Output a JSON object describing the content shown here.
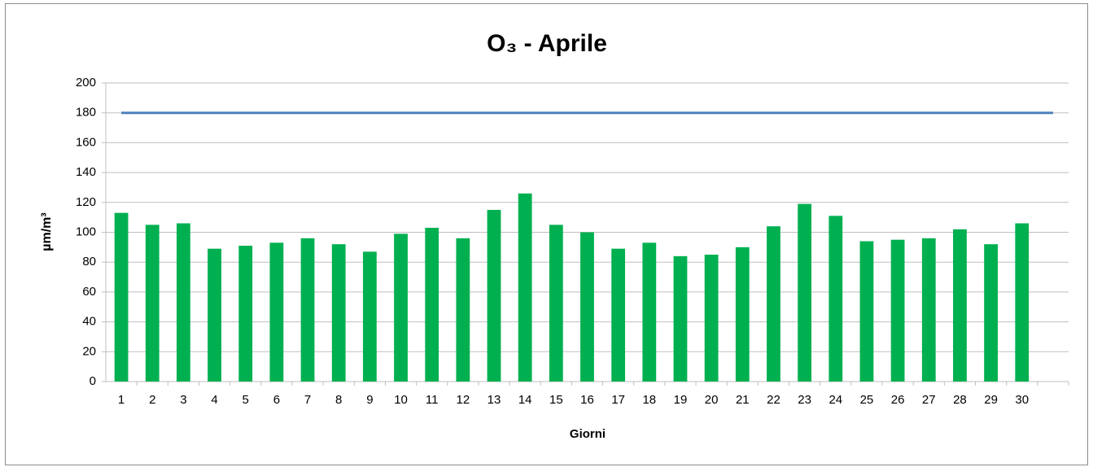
{
  "chart_data": {
    "type": "bar",
    "title": "O₃ - Aprile",
    "y_label": "µm/m³",
    "x_label": "Giorni",
    "categories": [
      "1",
      "2",
      "3",
      "4",
      "5",
      "6",
      "7",
      "8",
      "9",
      "10",
      "11",
      "12",
      "13",
      "14",
      "15",
      "16",
      "17",
      "18",
      "19",
      "20",
      "21",
      "22",
      "23",
      "24",
      "25",
      "26",
      "27",
      "28",
      "29",
      "30",
      null
    ],
    "series": [
      {
        "type": "bar",
        "color": "#00b050",
        "values": [
          113,
          105,
          106,
          89,
          91,
          93,
          96,
          92,
          87,
          99,
          103,
          96,
          115,
          126,
          105,
          100,
          89,
          93,
          84,
          85,
          90,
          104,
          119,
          111,
          94,
          95,
          96,
          102,
          92,
          106,
          null
        ]
      },
      {
        "type": "line",
        "color": "#4f81bd",
        "values": [
          180,
          180,
          180,
          180,
          180,
          180,
          180,
          180,
          180,
          180,
          180,
          180,
          180,
          180,
          180,
          180,
          180,
          180,
          180,
          180,
          180,
          180,
          180,
          180,
          180,
          180,
          180,
          180,
          180,
          180,
          180
        ]
      }
    ],
    "ylim": [
      0,
      200
    ],
    "yticks": [
      0,
      20,
      40,
      60,
      80,
      100,
      120,
      140,
      160,
      180,
      200
    ],
    "grid": true
  }
}
